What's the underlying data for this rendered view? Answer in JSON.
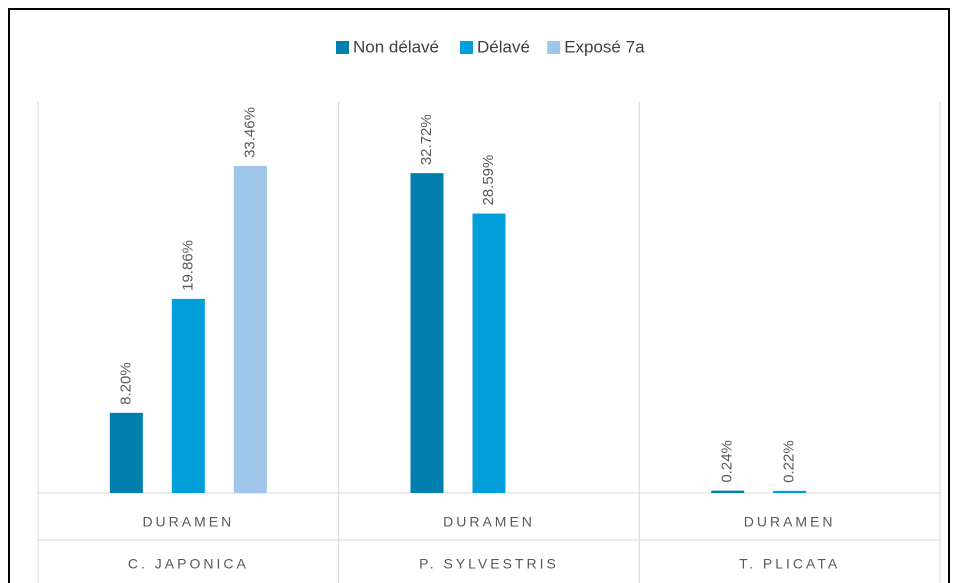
{
  "chart_data": {
    "type": "bar",
    "categories": [
      "C. JAPONICA",
      "P. SYLVESTRIS",
      "T. PLICATA"
    ],
    "subcategories": [
      "DURAMEN",
      "DURAMEN",
      "DURAMEN"
    ],
    "series": [
      {
        "name": "Non délavé",
        "color": "#007faf",
        "values": [
          8.2,
          32.72,
          0.24
        ],
        "value_labels": [
          "8.20%",
          "32.72%",
          "0.24%"
        ]
      },
      {
        "name": "Délavé",
        "color": "#009fda",
        "values": [
          19.86,
          28.59,
          0.22
        ],
        "value_labels": [
          "19.86%",
          "28.59%",
          "0.22%"
        ]
      },
      {
        "name": "Exposé 7a",
        "color": "#9fc5e8",
        "values": [
          33.46,
          null,
          null
        ],
        "value_labels": [
          "33.46%",
          null,
          null
        ]
      }
    ],
    "ylim": [
      0,
      40
    ],
    "legend": "top"
  }
}
